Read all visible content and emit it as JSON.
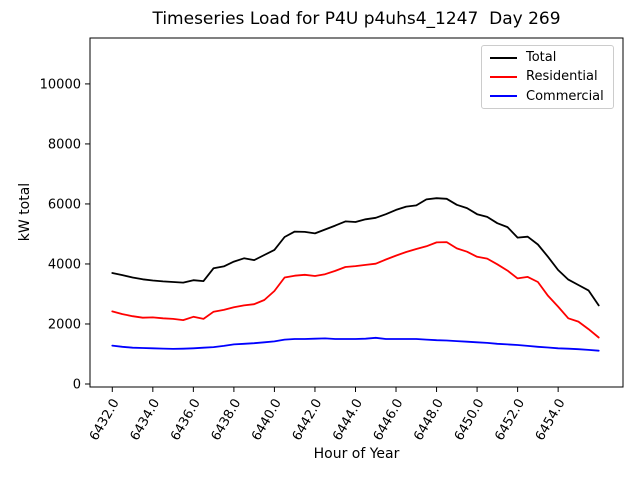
{
  "chart_data": {
    "type": "line",
    "title": "Timeseries Load for P4U p4uhs4_1247  Day 269",
    "xlabel": "Hour of Year",
    "ylabel": "kW total",
    "legend_position": "upper right",
    "grid": false,
    "xlim": [
      6430.9,
      6457.2
    ],
    "ylim": [
      -100,
      11530
    ],
    "x_ticks": [
      6432,
      6434,
      6436,
      6438,
      6440,
      6442,
      6444,
      6446,
      6448,
      6450,
      6452,
      6454
    ],
    "x_tick_labels": [
      "6432.0",
      "6434.0",
      "6436.0",
      "6438.0",
      "6440.0",
      "6442.0",
      "6444.0",
      "6446.0",
      "6448.0",
      "6450.0",
      "6452.0",
      "6454.0"
    ],
    "x_tick_rotation": 60,
    "y_ticks": [
      0,
      2000,
      4000,
      6000,
      8000,
      10000
    ],
    "y_tick_labels": [
      "0",
      "2000",
      "4000",
      "6000",
      "8000",
      "10000"
    ],
    "x": [
      6432,
      6432.5,
      6433,
      6433.5,
      6434,
      6434.5,
      6435,
      6435.5,
      6436,
      6436.5,
      6437,
      6437.5,
      6438,
      6438.5,
      6439,
      6439.5,
      6440,
      6440.5,
      6441,
      6441.5,
      6442,
      6442.5,
      6443,
      6443.5,
      6444,
      6444.5,
      6445,
      6445.5,
      6446,
      6446.5,
      6447,
      6447.5,
      6448,
      6448.5,
      6449,
      6449.5,
      6450,
      6450.5,
      6451,
      6451.5,
      6452,
      6452.5,
      6453,
      6453.5,
      6454,
      6454.5,
      6455,
      6455.5,
      6456
    ],
    "series": [
      {
        "name": "Total",
        "color": "#000000",
        "values": [
          3700,
          3630,
          3550,
          3490,
          3450,
          3420,
          3400,
          3380,
          3460,
          3430,
          3860,
          3920,
          4080,
          4190,
          4130,
          4300,
          4470,
          4900,
          5080,
          5070,
          5020,
          5150,
          5280,
          5420,
          5400,
          5490,
          5540,
          5660,
          5800,
          5910,
          5950,
          6150,
          6190,
          6170,
          5970,
          5860,
          5660,
          5570,
          5360,
          5230,
          4880,
          4910,
          4650,
          4240,
          3800,
          3480,
          3300,
          3120,
          2620
        ]
      },
      {
        "name": "Residential",
        "color": "#ff0000",
        "values": [
          2420,
          2330,
          2260,
          2210,
          2220,
          2190,
          2170,
          2130,
          2240,
          2170,
          2410,
          2470,
          2560,
          2620,
          2660,
          2800,
          3100,
          3550,
          3610,
          3640,
          3600,
          3660,
          3770,
          3900,
          3930,
          3970,
          4010,
          4150,
          4280,
          4400,
          4500,
          4590,
          4720,
          4730,
          4520,
          4410,
          4240,
          4180,
          3990,
          3780,
          3520,
          3570,
          3400,
          2940,
          2580,
          2190,
          2080,
          1830,
          1550
        ]
      },
      {
        "name": "Commercial",
        "color": "#0000ff",
        "values": [
          1280,
          1240,
          1210,
          1200,
          1190,
          1180,
          1170,
          1175,
          1190,
          1210,
          1230,
          1270,
          1320,
          1340,
          1360,
          1390,
          1420,
          1480,
          1500,
          1500,
          1510,
          1520,
          1500,
          1500,
          1500,
          1510,
          1540,
          1500,
          1500,
          1500,
          1500,
          1480,
          1460,
          1450,
          1430,
          1410,
          1390,
          1370,
          1340,
          1320,
          1300,
          1270,
          1240,
          1215,
          1190,
          1175,
          1160,
          1135,
          1110
        ]
      }
    ]
  }
}
